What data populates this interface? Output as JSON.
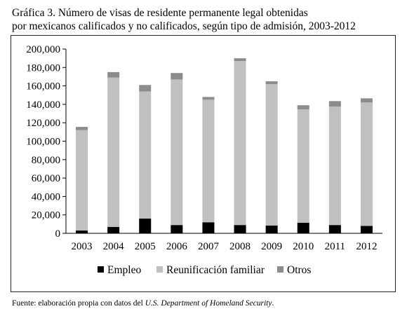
{
  "figure": {
    "title_line1": "Gráfica 3. Número de visas de residente permanente legal obtenidas",
    "title_line2": "por mexicanos calificados y no calificados, según tipo de admisión, 2003-2012",
    "source_prefix": "Fuente: elaboración propia con datos del ",
    "source_italic": "U.S. Department of Homeland Security",
    "source_suffix": "."
  },
  "chart_data": {
    "type": "bar",
    "stacked": true,
    "categories": [
      "2003",
      "2004",
      "2005",
      "2006",
      "2007",
      "2008",
      "2009",
      "2010",
      "2011",
      "2012"
    ],
    "series": [
      {
        "name": "Empleo",
        "color": "#000000",
        "values": [
          3000,
          7000,
          16000,
          9000,
          12000,
          9000,
          8500,
          11500,
          9000,
          8000
        ]
      },
      {
        "name": "Reunificación familiar",
        "color": "#c0c0c0",
        "values": [
          109000,
          162000,
          138000,
          158000,
          133000,
          178000,
          153500,
          123000,
          128500,
          134000
        ]
      },
      {
        "name": "Otros",
        "color": "#8c8c8c",
        "values": [
          3500,
          6000,
          7000,
          7000,
          3000,
          3000,
          3000,
          4500,
          6000,
          4500
        ]
      }
    ],
    "ylim": [
      0,
      200000
    ],
    "yticks": [
      0,
      20000,
      40000,
      60000,
      80000,
      100000,
      120000,
      140000,
      160000,
      180000,
      200000
    ],
    "ytick_labels": [
      "0",
      "20,000",
      "40,000",
      "60,000",
      "80,000",
      "100,000",
      "120,000",
      "140,000",
      "160,000",
      "180,000",
      "200,000"
    ],
    "legend_position": "bottom",
    "grid": false
  }
}
